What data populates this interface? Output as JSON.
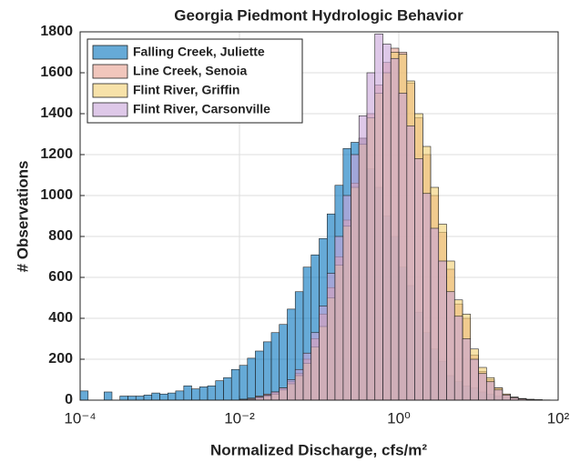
{
  "chart_data": {
    "type": "histogram",
    "title": "Georgia Piedmont Hydrologic Behavior",
    "xlabel": "Normalized Discharge, cfs/m²",
    "ylabel": "# Observations",
    "xscale": "log",
    "grid": true,
    "legend_position": "upper-left",
    "xlim": [
      0.0001,
      100
    ],
    "xticks": [
      {
        "value": 0.0001,
        "label": "10⁻⁴"
      },
      {
        "value": 0.01,
        "label": "10⁻²"
      },
      {
        "value": 1,
        "label": "10⁰"
      },
      {
        "value": 100,
        "label": "10²"
      }
    ],
    "ylim": [
      0,
      1800
    ],
    "yticks": [
      0,
      200,
      400,
      600,
      800,
      1000,
      1200,
      1400,
      1600,
      1800
    ],
    "bins": [
      0.0001,
      0.000126,
      0.000158,
      0.0002,
      0.000251,
      0.000316,
      0.000398,
      0.000501,
      0.000631,
      0.000794,
      0.001,
      0.00126,
      0.00158,
      0.002,
      0.00251,
      0.00316,
      0.00398,
      0.00501,
      0.00631,
      0.00794,
      0.01,
      0.0126,
      0.0158,
      0.02,
      0.0251,
      0.0316,
      0.0398,
      0.0501,
      0.0631,
      0.0794,
      0.1,
      0.126,
      0.158,
      0.2,
      0.251,
      0.316,
      0.398,
      0.501,
      0.631,
      0.794,
      1,
      1.26,
      1.58,
      2,
      2.51,
      3.16,
      3.98,
      5.01,
      6.31,
      7.94,
      10,
      12.6,
      15.8,
      20,
      25.1,
      31.6,
      39.8,
      50.1,
      63.1,
      79.4,
      100
    ],
    "series": [
      {
        "name": "Falling Creek, Juliette",
        "color": "#0072bd",
        "values": [
          45,
          0,
          0,
          40,
          0,
          20,
          20,
          20,
          25,
          35,
          30,
          35,
          45,
          70,
          55,
          65,
          70,
          95,
          110,
          150,
          170,
          205,
          240,
          285,
          330,
          370,
          445,
          530,
          650,
          710,
          790,
          910,
          1050,
          1230,
          1260,
          1280,
          1130,
          1040,
          900,
          800,
          650,
          560,
          430,
          330,
          250,
          190,
          120,
          90,
          70,
          60,
          40,
          30,
          20,
          15,
          10,
          5,
          3,
          2,
          1,
          0
        ]
      },
      {
        "name": "Line Creek, Senoia",
        "color": "#e8a090",
        "values": [
          0,
          0,
          0,
          0,
          0,
          0,
          0,
          0,
          0,
          0,
          0,
          0,
          0,
          0,
          0,
          0,
          0,
          0,
          0,
          0,
          5,
          10,
          20,
          30,
          40,
          60,
          90,
          130,
          200,
          300,
          420,
          550,
          700,
          880,
          1060,
          1280,
          1400,
          1540,
          1650,
          1720,
          1700,
          1550,
          1380,
          1200,
          1000,
          820,
          640,
          470,
          400,
          220,
          140,
          100,
          60,
          30,
          15,
          8,
          4,
          2,
          1,
          0
        ]
      },
      {
        "name": "Flint River, Griffin",
        "color": "#f2cf70",
        "values": [
          0,
          0,
          0,
          0,
          0,
          0,
          0,
          0,
          0,
          0,
          0,
          0,
          0,
          0,
          0,
          0,
          0,
          0,
          0,
          0,
          0,
          5,
          10,
          20,
          30,
          50,
          80,
          120,
          180,
          260,
          360,
          500,
          660,
          850,
          1040,
          1250,
          1380,
          1500,
          1600,
          1700,
          1690,
          1560,
          1400,
          1240,
          1040,
          860,
          680,
          490,
          420,
          250,
          160,
          110,
          60,
          30,
          15,
          8,
          4,
          2,
          1,
          0
        ]
      },
      {
        "name": "Flint River, Carsonville",
        "color": "#c8a3d8",
        "values": [
          0,
          0,
          0,
          0,
          0,
          0,
          0,
          0,
          0,
          0,
          0,
          0,
          0,
          0,
          0,
          0,
          0,
          0,
          0,
          0,
          2,
          5,
          15,
          25,
          40,
          60,
          100,
          150,
          230,
          330,
          460,
          620,
          800,
          1000,
          1200,
          1390,
          1600,
          1790,
          1740,
          1670,
          1500,
          1340,
          1180,
          1010,
          840,
          680,
          530,
          410,
          300,
          200,
          130,
          90,
          50,
          25,
          12,
          6,
          3,
          1,
          0,
          0
        ]
      }
    ]
  }
}
